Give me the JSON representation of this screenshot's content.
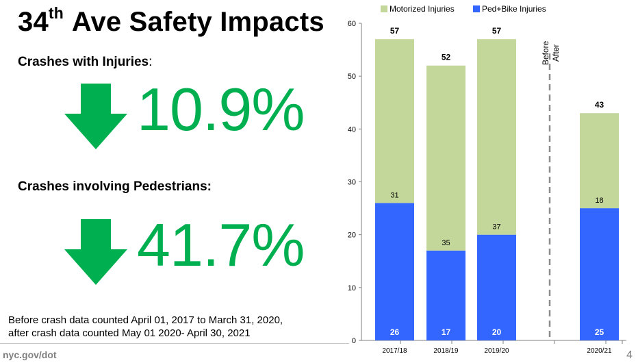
{
  "slide": {
    "title_prefix": "34",
    "title_sup": "th",
    "title_rest": " Ave Safety Impacts",
    "stat1_label": "Crashes with Injuries",
    "stat1_colon": ":",
    "stat1_value": "10.9%",
    "stat2_label": "Crashes involving Pedestrians:",
    "stat2_value": "41.7%",
    "note_line1": "Before crash data counted April 01, 2017 to March 31, 2020,",
    "note_line2": "after crash data counted May 01 2020- April 30, 2021",
    "footer": "nyc.gov/dot",
    "page_number": "4",
    "accent_color": "#00b050",
    "arrow_icon": "down-arrow-icon"
  },
  "chart_data": {
    "type": "bar",
    "stacked": true,
    "categories": [
      "2017/18",
      "2018/19",
      "2019/20",
      "2020/21"
    ],
    "series": [
      {
        "name": "Motorized Injuries",
        "color": "#c4d79b",
        "values": [
          31,
          35,
          37,
          18
        ]
      },
      {
        "name": "Ped+Bike Injuries",
        "color": "#3366ff",
        "values": [
          26,
          17,
          20,
          25
        ]
      }
    ],
    "totals": [
      57,
      52,
      57,
      43
    ],
    "ylim": [
      0,
      60
    ],
    "yticks": [
      0,
      10,
      20,
      30,
      40,
      50,
      60
    ],
    "grid": false,
    "legend_position": "top",
    "divider": {
      "after_category": "2019/20",
      "before_label": "Before",
      "after_label": "After"
    }
  }
}
